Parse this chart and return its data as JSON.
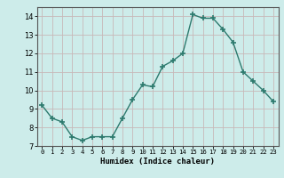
{
  "x": [
    0,
    1,
    2,
    3,
    4,
    5,
    6,
    7,
    8,
    9,
    10,
    11,
    12,
    13,
    14,
    15,
    16,
    17,
    18,
    19,
    20,
    21,
    22,
    23
  ],
  "y": [
    9.2,
    8.5,
    8.3,
    7.5,
    7.3,
    7.5,
    7.5,
    7.5,
    8.5,
    9.5,
    10.3,
    10.2,
    11.3,
    11.6,
    12.0,
    14.1,
    13.9,
    13.9,
    13.3,
    12.6,
    11.0,
    10.5,
    10.0,
    9.4
  ],
  "line_color": "#2d7a6e",
  "marker": "+",
  "marker_size": 4,
  "marker_lw": 1.2,
  "xlabel": "Humidex (Indice chaleur)",
  "ylim": [
    7,
    14.5
  ],
  "xlim": [
    -0.5,
    23.5
  ],
  "yticks": [
    7,
    8,
    9,
    10,
    11,
    12,
    13,
    14
  ],
  "xticks": [
    0,
    1,
    2,
    3,
    4,
    5,
    6,
    7,
    8,
    9,
    10,
    11,
    12,
    13,
    14,
    15,
    16,
    17,
    18,
    19,
    20,
    21,
    22,
    23
  ],
  "xtick_labels": [
    "0",
    "1",
    "2",
    "3",
    "4",
    "5",
    "6",
    "7",
    "8",
    "9",
    "10",
    "11",
    "12",
    "13",
    "14",
    "15",
    "16",
    "17",
    "18",
    "19",
    "20",
    "21",
    "22",
    "23"
  ],
  "background_color": "#cdecea",
  "grid_color_major": "#c8b8b8",
  "grid_color_minor": "#d8eeec",
  "line_width": 1.0
}
